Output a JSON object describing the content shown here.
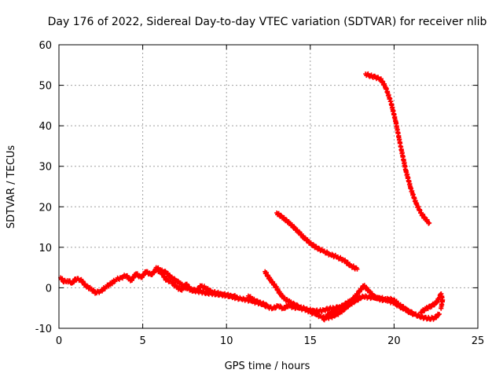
{
  "chart_data": {
    "type": "scatter",
    "title": "Day 176 of 2022, Sidereal Day-to-day VTEC variation (SDTVAR) for receiver nlib",
    "xlabel": "GPS time / hours",
    "ylabel": "SDTVAR / TECUs",
    "xlim": [
      0,
      25
    ],
    "ylim": [
      -10,
      60
    ],
    "xticks": [
      0,
      5,
      10,
      15,
      20,
      25
    ],
    "yticks": [
      -10,
      0,
      10,
      20,
      30,
      40,
      50,
      60
    ],
    "xtick_labels": [
      "0",
      "5",
      "10",
      "15",
      "20",
      "25"
    ],
    "ytick_labels": [
      "-10",
      "0",
      "10",
      "20",
      "30",
      "40",
      "50",
      "60"
    ],
    "grid": true,
    "marker": "+",
    "color": "#ff0000",
    "series": [
      {
        "name": "arc-main-1",
        "x": [
          0.1,
          0.3,
          0.5,
          0.8,
          1.0,
          1.3,
          1.6,
          1.9,
          2.2,
          2.5,
          2.8,
          3.1,
          3.4,
          3.7,
          4.0,
          4.3,
          4.6,
          4.9,
          5.2,
          5.5,
          5.8,
          6.1,
          6.4,
          6.7,
          7.0,
          7.3,
          7.6,
          7.9,
          8.2,
          8.5,
          8.8,
          9.1,
          9.4,
          9.7,
          10.0,
          10.3,
          10.6,
          10.9,
          11.2,
          11.5,
          11.8,
          12.1,
          12.4
        ],
        "y": [
          2.5,
          1.5,
          1.8,
          1.2,
          2.2,
          2.0,
          0.5,
          -0.3,
          -1.2,
          -0.8,
          0.2,
          1.0,
          2.0,
          2.5,
          3.0,
          1.8,
          3.5,
          2.5,
          4.0,
          3.2,
          4.5,
          3.8,
          2.0,
          1.5,
          0.2,
          -0.5,
          0.8,
          -0.5,
          -0.8,
          -1.0,
          -1.3,
          -1.4,
          -1.6,
          -1.7,
          -1.9,
          -2.2,
          -2.5,
          -2.8,
          -2.9,
          -3.3,
          -3.6,
          -3.9,
          -4.2
        ]
      },
      {
        "name": "arc-main-2",
        "x": [
          5.8,
          6.1,
          6.4,
          6.7,
          7.0,
          7.3,
          7.6,
          7.9,
          8.2,
          8.5,
          8.8,
          9.1,
          9.4,
          9.7,
          10.0,
          10.3,
          10.6
        ],
        "y": [
          5.0,
          4.2,
          3.8,
          2.5,
          1.8,
          0.8,
          0.0,
          -0.5,
          -0.7,
          0.5,
          -0.2,
          -1.0,
          -1.3,
          -1.5,
          -1.8,
          -2.0,
          -2.2
        ]
      },
      {
        "name": "arc-main-3",
        "x": [
          11.3,
          11.6,
          11.9,
          12.2,
          12.5,
          12.8,
          13.1,
          13.4,
          13.7,
          14.0,
          14.3,
          14.6,
          14.9,
          15.2,
          15.5,
          15.8,
          16.1,
          16.4,
          16.7,
          17.0
        ],
        "y": [
          -2.0,
          -3.0,
          -3.5,
          -4.2,
          -4.8,
          -5.0,
          -4.5,
          -5.1,
          -4.3,
          -4.8,
          -5.0,
          -5.2,
          -5.5,
          -5.6,
          -5.8,
          -5.5,
          -5.2,
          -5.0,
          -4.8,
          -5.3
        ]
      },
      {
        "name": "arc-low-1",
        "x": [
          12.3,
          12.6,
          12.9,
          13.2,
          13.5,
          13.8,
          14.1,
          14.4,
          14.7,
          15.0,
          15.3,
          15.6,
          15.9,
          16.2,
          16.5,
          16.8,
          17.1,
          17.4,
          17.7,
          18.0
        ],
        "y": [
          4.0,
          2.0,
          0.5,
          -1.5,
          -2.8,
          -3.6,
          -4.2,
          -4.8,
          -5.2,
          -6.0,
          -6.5,
          -7.0,
          -7.5,
          -7.2,
          -6.8,
          -6.0,
          -5.0,
          -4.0,
          -3.2,
          -2.5
        ]
      },
      {
        "name": "arc-low-2",
        "x": [
          15.8,
          16.1,
          16.4,
          16.7,
          17.0,
          17.3,
          17.6,
          17.9,
          18.2,
          18.5,
          18.8,
          19.1,
          19.4,
          19.7,
          20.0,
          20.3,
          20.6,
          20.9,
          21.2,
          21.5,
          21.8,
          22.1,
          22.4,
          22.7
        ],
        "y": [
          -7.8,
          -6.5,
          -5.8,
          -5.0,
          -4.2,
          -3.5,
          -3.0,
          -2.5,
          -2.2,
          -2.3,
          -2.5,
          -2.4,
          -2.8,
          -3.2,
          -3.8,
          -4.5,
          -5.2,
          -5.8,
          -6.5,
          -7.0,
          -7.4,
          -7.6,
          -7.5,
          -6.5
        ]
      },
      {
        "name": "arc-low-3",
        "x": [
          17.0,
          17.4,
          17.8,
          18.2,
          18.5,
          18.8,
          19.1,
          19.4,
          19.7,
          20.0,
          20.3,
          20.6,
          20.9,
          21.2
        ],
        "y": [
          -4.5,
          -3.5,
          -1.5,
          0.5,
          -0.8,
          -2.2,
          -2.8,
          -3.0,
          -2.8,
          -3.0,
          -4.2,
          -5.0,
          -6.0,
          -6.5
        ]
      },
      {
        "name": "arc-low-4",
        "x": [
          21.6,
          21.9,
          22.2,
          22.5,
          22.7,
          22.8,
          22.9,
          22.8
        ],
        "y": [
          -6.0,
          -5.2,
          -4.5,
          -3.8,
          -2.5,
          -1.5,
          -3.0,
          -5.0
        ]
      },
      {
        "name": "arc-mid",
        "x": [
          13.0,
          13.4,
          13.8,
          14.2,
          14.6,
          15.0,
          15.4,
          15.8,
          16.2,
          16.6,
          17.0,
          17.4,
          17.8
        ],
        "y": [
          18.5,
          17.2,
          15.8,
          14.2,
          12.5,
          11.0,
          9.8,
          9.0,
          8.2,
          7.6,
          6.8,
          5.5,
          4.6
        ]
      },
      {
        "name": "arc-high",
        "x": [
          18.3,
          18.6,
          18.9,
          19.2,
          19.5,
          19.8,
          20.1,
          20.4,
          20.7,
          21.0,
          21.3,
          21.6,
          21.9,
          22.1
        ],
        "y": [
          52.8,
          52.3,
          52.0,
          51.5,
          49.5,
          46.0,
          41.0,
          34.8,
          29.0,
          24.5,
          21.0,
          18.5,
          16.8,
          16.0
        ]
      }
    ]
  }
}
